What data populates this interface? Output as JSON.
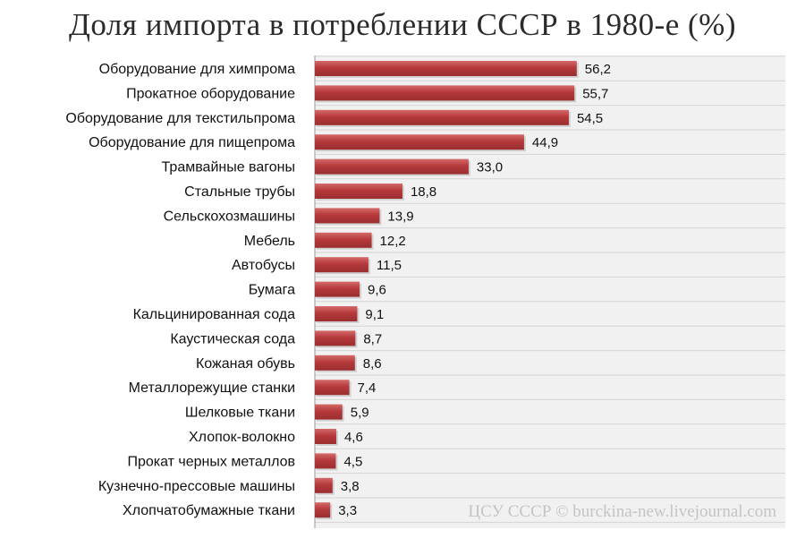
{
  "chart_data": {
    "type": "bar",
    "orientation": "horizontal",
    "title": "Доля импорта в потреблении СССР в 1980-е (%)",
    "categories": [
      "Оборудование для химпрома",
      "Прокатное оборудование",
      "Оборудование для текстильпрома",
      "Оборудование для пищепрома",
      "Трамвайные вагоны",
      "Стальные трубы",
      "Сельскохозмашины",
      "Мебель",
      "Автобусы",
      "Бумага",
      "Кальцинированная сода",
      "Каустическая сода",
      "Кожаная обувь",
      "Металлорежущие станки",
      "Шелковые ткани",
      "Хлопок-волокно",
      "Прокат черных металлов",
      "Кузнечно-прессовые машины",
      "Хлопчатобумажные ткани"
    ],
    "values": [
      56.2,
      55.7,
      54.5,
      44.9,
      33.0,
      18.8,
      13.9,
      12.2,
      11.5,
      9.6,
      9.1,
      8.7,
      8.6,
      7.4,
      5.9,
      4.6,
      4.5,
      3.8,
      3.3
    ],
    "value_labels": [
      "56,2",
      "55,7",
      "54,5",
      "44,9",
      "33,0",
      "18,8",
      "13,9",
      "12,2",
      "11,5",
      "9,6",
      "9,1",
      "8,7",
      "8,6",
      "7,4",
      "5,9",
      "4,6",
      "4,5",
      "3,8",
      "3,3"
    ],
    "xlim": [
      0,
      100
    ],
    "grid": true,
    "colors": {
      "bar": "#b5393b",
      "bar_highlight": "#d46a6a",
      "plot_bg": "#f1f1f1",
      "grid": "#d4d4d4"
    }
  },
  "source": "ЦСУ СССР © burckina-new.livejournal.com"
}
